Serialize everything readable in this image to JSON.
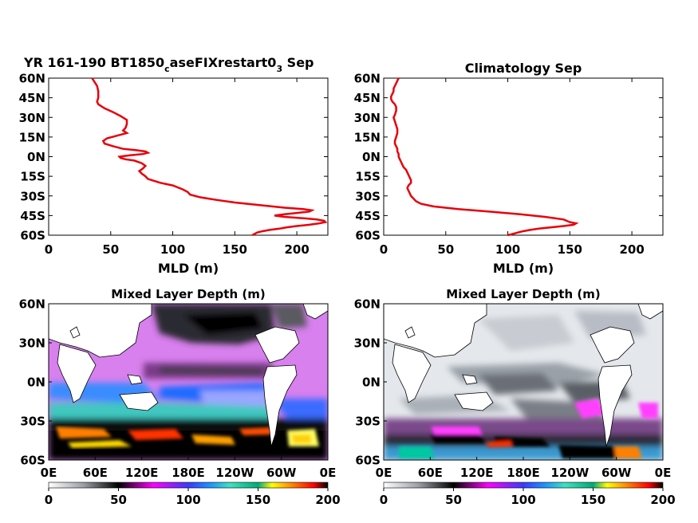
{
  "figure": {
    "panel1_title": {
      "main": "YR 161-190 BT1850",
      "sub1": "c",
      "mid": "aseFIXrestart0",
      "sub2": "3",
      "tail": " Sep"
    },
    "panel2_title": "Climatology Sep",
    "panel3_title": "Mixed Layer Depth (m)",
    "panel4_title": "Mixed Layer Depth (m)"
  },
  "colors": {
    "profile_line": "#e8000b",
    "land": "#ffffff",
    "colormap": [
      [
        0,
        "#ffffff"
      ],
      [
        25,
        "#9aa0a6"
      ],
      [
        50,
        "#000000"
      ],
      [
        60,
        "#6a006a"
      ],
      [
        75,
        "#ff00ff"
      ],
      [
        100,
        "#3a3aff"
      ],
      [
        115,
        "#1e90ff"
      ],
      [
        130,
        "#40e0c0"
      ],
      [
        150,
        "#00aa77"
      ],
      [
        160,
        "#ffff00"
      ],
      [
        175,
        "#ff7f00"
      ],
      [
        190,
        "#ff0000"
      ],
      [
        200,
        "#000000"
      ]
    ]
  },
  "chart_data": [
    {
      "type": "line",
      "title": "YR 161-190 BT1850caseFIXrestart03 Sep",
      "xlabel": "MLD (m)",
      "ylabel": "",
      "xlim": [
        0,
        225
      ],
      "ylim": [
        -60,
        60
      ],
      "xticks": [
        0,
        50,
        100,
        150,
        200
      ],
      "yticks": [
        60,
        45,
        30,
        15,
        0,
        -15,
        -30,
        -45,
        -60
      ],
      "ytick_labels": [
        "60N",
        "45N",
        "30N",
        "15N",
        "0N",
        "15S",
        "30S",
        "45S",
        "60S"
      ],
      "series": [
        {
          "y": [
            60,
            57,
            54,
            50,
            45,
            42,
            40,
            37,
            34,
            31,
            28,
            25,
            22,
            20,
            18,
            16,
            14,
            12,
            10,
            8,
            6,
            5,
            4,
            3,
            2,
            1,
            0,
            -1,
            -2,
            -3,
            -5,
            -7,
            -9,
            -11,
            -13,
            -15,
            -17,
            -20,
            -22,
            -25,
            -27,
            -29,
            -31,
            -33,
            -35,
            -37,
            -39,
            -40,
            -41,
            -42,
            -43,
            -44,
            -45,
            -46,
            -47,
            -48,
            -49,
            -50,
            -51,
            -52,
            -53,
            -54,
            -55,
            -56,
            -57,
            -58,
            -59,
            -60
          ],
          "x": [
            35,
            37,
            39,
            40,
            40,
            39,
            40,
            45,
            52,
            58,
            63,
            63,
            62,
            60,
            63,
            55,
            47,
            44,
            45,
            52,
            60,
            70,
            78,
            80,
            76,
            65,
            57,
            58,
            62,
            69,
            75,
            78,
            76,
            73,
            75,
            78,
            80,
            90,
            100,
            108,
            112,
            114,
            122,
            135,
            150,
            170,
            190,
            205,
            212,
            210,
            200,
            190,
            182,
            190,
            205,
            216,
            222,
            223,
            218,
            210,
            200,
            192,
            186,
            178,
            172,
            168,
            166,
            164
          ]
        }
      ]
    },
    {
      "type": "line",
      "title": "Climatology Sep",
      "xlabel": "MLD (m)",
      "ylabel": "",
      "xlim": [
        0,
        225
      ],
      "ylim": [
        -60,
        60
      ],
      "xticks": [
        0,
        50,
        100,
        150,
        200
      ],
      "yticks": [
        60,
        45,
        30,
        15,
        0,
        -15,
        -30,
        -45,
        -60
      ],
      "ytick_labels": [
        "60N",
        "45N",
        "30N",
        "15N",
        "0N",
        "15S",
        "30S",
        "45S",
        "60S"
      ],
      "series": [
        {
          "y": [
            60,
            58,
            56,
            54,
            52,
            50,
            48,
            46,
            44,
            42,
            40,
            38,
            35,
            32,
            30,
            27,
            24,
            21,
            18,
            15,
            12,
            10,
            8,
            6,
            4,
            2,
            0,
            -2,
            -4,
            -6,
            -8,
            -10,
            -12,
            -14,
            -16,
            -18,
            -20,
            -22,
            -24,
            -26,
            -28,
            -30,
            -32,
            -34,
            -36,
            -38,
            -40,
            -42,
            -44,
            -46,
            -48,
            -50,
            -51,
            -52,
            -53,
            -54,
            -55,
            -56,
            -57,
            -58,
            -59,
            -60
          ],
          "x": [
            12,
            11,
            10,
            9,
            8,
            8,
            7,
            6,
            6,
            7,
            9,
            10,
            10,
            9,
            8,
            9,
            10,
            11,
            11,
            10,
            9,
            9,
            10,
            11,
            11,
            12,
            12,
            13,
            14,
            15,
            16,
            18,
            19,
            20,
            21,
            22,
            22,
            20,
            19,
            20,
            21,
            22,
            24,
            26,
            30,
            40,
            60,
            85,
            110,
            130,
            145,
            150,
            155,
            153,
            145,
            135,
            125,
            118,
            112,
            108,
            104,
            100
          ]
        }
      ]
    },
    {
      "type": "heatmap",
      "title": "Mixed Layer Depth (m)",
      "xticks": [
        "0E",
        "60E",
        "120E",
        "180E",
        "120W",
        "60W",
        "0E"
      ],
      "yticks": [
        "60N",
        "30N",
        "0N",
        "30S",
        "60S"
      ],
      "colorbar_ticks": [
        0,
        50,
        100,
        150,
        200
      ],
      "clim": [
        0,
        200
      ]
    },
    {
      "type": "heatmap",
      "title": "Mixed Layer Depth (m)",
      "xticks": [
        "0E",
        "60E",
        "120E",
        "180E",
        "120W",
        "60W",
        "0E"
      ],
      "yticks": [
        "60N",
        "30N",
        "0N",
        "30S",
        "60S"
      ],
      "colorbar_ticks": [
        0,
        50,
        100,
        150,
        200
      ],
      "clim": [
        0,
        200
      ]
    }
  ]
}
